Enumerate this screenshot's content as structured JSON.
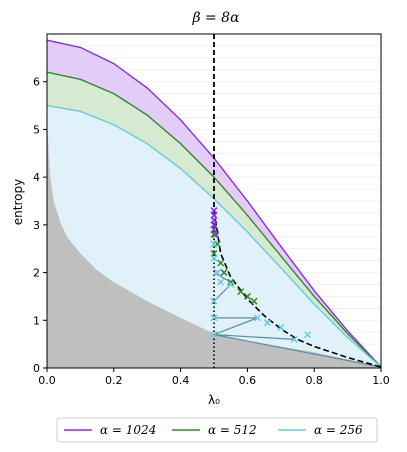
{
  "chart_data": {
    "type": "line",
    "title": "β = 8α",
    "xlabel": "λ₀",
    "ylabel": "entropy",
    "xlim": [
      0.0,
      1.0
    ],
    "ylim": [
      0,
      7
    ],
    "xticks": [
      "0.0",
      "0.2",
      "0.4",
      "0.6",
      "0.8",
      "1.0"
    ],
    "yticks": [
      "0",
      "1",
      "2",
      "3",
      "4",
      "5",
      "6"
    ],
    "grid": "horizontal",
    "legend_position": "bottom",
    "colors": {
      "alpha_1024": "#8a2be2",
      "alpha_512": "#2e8b2e",
      "alpha_256": "#6ec6e0",
      "lower_region": "#bfbfbf",
      "vertical_line": "#000000"
    },
    "series": [
      {
        "name": "α = 1024",
        "key": "a1024",
        "upper": [
          [
            0,
            6.87
          ],
          [
            0.1,
            6.72
          ],
          [
            0.2,
            6.38
          ],
          [
            0.3,
            5.87
          ],
          [
            0.4,
            5.2
          ],
          [
            0.5,
            4.4
          ],
          [
            0.6,
            3.5
          ],
          [
            0.7,
            2.55
          ],
          [
            0.8,
            1.62
          ],
          [
            0.9,
            0.78
          ],
          [
            1.0,
            0.02
          ]
        ],
        "lower": [
          [
            0,
            6.2
          ],
          [
            0.1,
            6.05
          ],
          [
            0.2,
            5.75
          ],
          [
            0.3,
            5.3
          ],
          [
            0.4,
            4.7
          ],
          [
            0.5,
            4.0
          ],
          [
            0.6,
            3.2
          ],
          [
            0.7,
            2.35
          ],
          [
            0.8,
            1.5
          ],
          [
            0.9,
            0.72
          ],
          [
            1.0,
            0.02
          ]
        ],
        "markers": [
          [
            0.5,
            3.3
          ],
          [
            0.5,
            3.2
          ],
          [
            0.5,
            3.1
          ],
          [
            0.5,
            3.0
          ],
          [
            0.5,
            2.9
          ],
          [
            0.505,
            2.8
          ]
        ]
      },
      {
        "name": "α = 512",
        "key": "a512",
        "upper": [
          [
            0,
            6.2
          ],
          [
            0.1,
            6.05
          ],
          [
            0.2,
            5.75
          ],
          [
            0.3,
            5.3
          ],
          [
            0.4,
            4.7
          ],
          [
            0.5,
            4.0
          ],
          [
            0.6,
            3.2
          ],
          [
            0.7,
            2.35
          ],
          [
            0.8,
            1.5
          ],
          [
            0.9,
            0.72
          ],
          [
            1.0,
            0.02
          ]
        ],
        "lower": [
          [
            0,
            5.5
          ],
          [
            0.1,
            5.38
          ],
          [
            0.2,
            5.1
          ],
          [
            0.3,
            4.7
          ],
          [
            0.4,
            4.18
          ],
          [
            0.5,
            3.55
          ],
          [
            0.6,
            2.85
          ],
          [
            0.7,
            2.1
          ],
          [
            0.8,
            1.34
          ],
          [
            0.9,
            0.64
          ],
          [
            1.0,
            0.02
          ]
        ],
        "markers": [
          [
            0.5,
            2.8
          ],
          [
            0.51,
            2.6
          ],
          [
            0.5,
            2.4
          ],
          [
            0.52,
            2.2
          ],
          [
            0.53,
            2.0
          ],
          [
            0.55,
            1.8
          ],
          [
            0.58,
            1.6
          ],
          [
            0.6,
            1.5
          ],
          [
            0.62,
            1.4
          ]
        ]
      },
      {
        "name": "α = 256",
        "key": "a256",
        "upper": [
          [
            0,
            5.5
          ],
          [
            0.1,
            5.38
          ],
          [
            0.2,
            5.1
          ],
          [
            0.3,
            4.7
          ],
          [
            0.4,
            4.18
          ],
          [
            0.5,
            3.55
          ],
          [
            0.6,
            2.85
          ],
          [
            0.7,
            2.1
          ],
          [
            0.8,
            1.34
          ],
          [
            0.9,
            0.64
          ],
          [
            1.0,
            0.02
          ]
        ],
        "lower": [
          [
            0,
            0.05
          ],
          [
            1.0,
            0.02
          ]
        ],
        "markers": [
          [
            0.5,
            2.6
          ],
          [
            0.5,
            2.3
          ],
          [
            0.51,
            2.0
          ],
          [
            0.52,
            1.8
          ],
          [
            0.5,
            1.4
          ],
          [
            0.5,
            1.05
          ],
          [
            0.5,
            0.7
          ],
          [
            0.55,
            1.75
          ],
          [
            0.63,
            1.05
          ],
          [
            0.74,
            0.6
          ],
          [
            0.78,
            0.7
          ],
          [
            0.7,
            0.85
          ],
          [
            0.66,
            0.95
          ]
        ]
      }
    ],
    "lower_region_curve": [
      [
        0.0,
        5.3
      ],
      [
        0.005,
        4.5
      ],
      [
        0.01,
        4.0
      ],
      [
        0.02,
        3.5
      ],
      [
        0.04,
        3.05
      ],
      [
        0.06,
        2.75
      ],
      [
        0.1,
        2.4
      ],
      [
        0.15,
        2.05
      ],
      [
        0.2,
        1.8
      ],
      [
        0.3,
        1.4
      ],
      [
        0.4,
        1.05
      ],
      [
        0.5,
        0.72
      ],
      [
        0.6,
        0.57
      ],
      [
        0.7,
        0.45
      ],
      [
        0.8,
        0.33
      ],
      [
        0.9,
        0.18
      ],
      [
        1.0,
        0.02
      ]
    ],
    "boundary_dashed": [
      [
        0.5,
        3.3
      ],
      [
        0.52,
        2.4
      ],
      [
        0.55,
        1.9
      ],
      [
        0.6,
        1.45
      ],
      [
        0.65,
        1.1
      ],
      [
        0.7,
        0.82
      ],
      [
        0.75,
        0.6
      ],
      [
        0.8,
        0.45
      ],
      [
        0.9,
        0.22
      ],
      [
        1.0,
        0.02
      ]
    ],
    "vertical_x": 0.5,
    "connector_lines": [
      [
        [
          0.5,
          1.05
        ],
        [
          0.63,
          1.05
        ]
      ],
      [
        [
          0.5,
          0.7
        ],
        [
          0.74,
          0.6
        ]
      ],
      [
        [
          0.5,
          1.4
        ],
        [
          0.55,
          1.75
        ]
      ],
      [
        [
          0.5,
          2.0
        ],
        [
          0.55,
          1.8
        ]
      ],
      [
        [
          0.5,
          0.7
        ],
        [
          0.63,
          1.05
        ]
      ],
      [
        [
          0.5,
          0.7
        ],
        [
          1.0,
          0.02
        ]
      ]
    ]
  }
}
